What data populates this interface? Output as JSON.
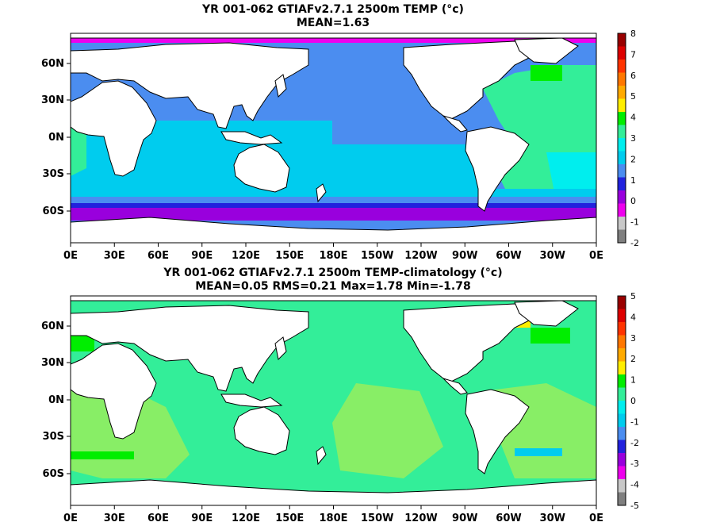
{
  "panels": [
    {
      "title": "YR 001-062 GTIAFv2.7.1 2500m TEMP (°c)",
      "subtitle": "MEAN=1.63",
      "colorbar": [
        "8",
        "7",
        "6",
        "5",
        "4",
        "3",
        "2",
        "1",
        "0",
        "-1",
        "-2"
      ]
    },
    {
      "title": "YR 001-062 GTIAFv2.7.1 2500m TEMP-climatology (°c)",
      "subtitle": "MEAN=0.05   RMS=0.21   Max=1.78   Min=-1.78",
      "colorbar": [
        "5",
        "4",
        "3",
        "2",
        "1",
        "0",
        "-1",
        "-2",
        "-3",
        "-4",
        "-5"
      ]
    }
  ],
  "lat_labels": [
    "60N",
    "30N",
    "0N",
    "30S",
    "60S"
  ],
  "lon_labels": [
    "0E",
    "30E",
    "60E",
    "90E",
    "120E",
    "150E",
    "180E",
    "150W",
    "120W",
    "90W",
    "60W",
    "30W",
    "0E"
  ],
  "colors": {
    "scale": [
      "#7f7f7f",
      "#c8c8c8",
      "#ee00ee",
      "#9900dd",
      "#2222dd",
      "#4b8df0",
      "#00ccee",
      "#00eeee",
      "#33ee99",
      "#00ee00",
      "#ffee00",
      "#ffaa00",
      "#ff7700",
      "#ff3300",
      "#dd0000",
      "#990000"
    ],
    "land": "#ffffff",
    "coast": "#000000"
  }
}
